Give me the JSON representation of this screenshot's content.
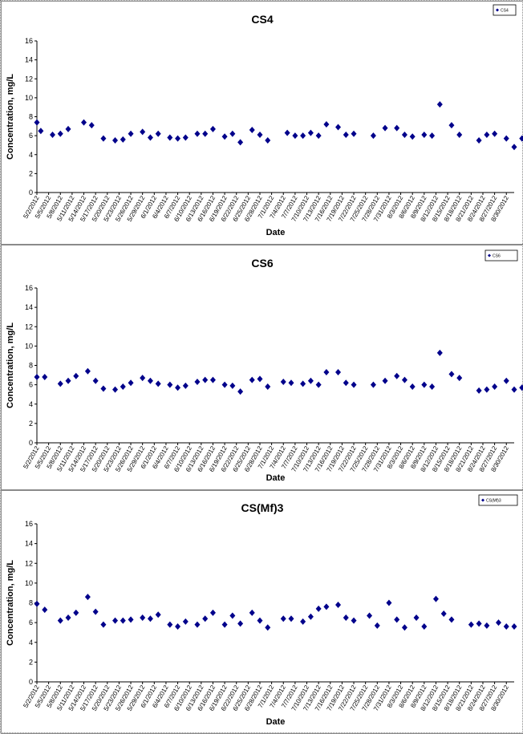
{
  "chart_data": [
    {
      "type": "scatter",
      "title": "CS4",
      "xlabel": "Date",
      "ylabel": "Concentration, mg/L",
      "ylim": [
        0,
        16
      ],
      "yticks": [
        0,
        2,
        4,
        6,
        8,
        10,
        12,
        14,
        16
      ],
      "xlim": [
        "5/2/2012",
        "9/1/2012"
      ],
      "xticks": [
        "5/2/2012",
        "5/5/2012",
        "5/8/2012",
        "5/11/2012",
        "5/14/2012",
        "5/17/2012",
        "5/20/2012",
        "5/23/2012",
        "5/26/2012",
        "5/29/2012",
        "6/1/2012",
        "6/4/2012",
        "6/7/2012",
        "6/10/2012",
        "6/13/2012",
        "6/16/2012",
        "6/19/2012",
        "6/22/2012",
        "6/25/2012",
        "6/28/2012",
        "7/1/2012",
        "7/4/2012",
        "7/7/2012",
        "7/10/2012",
        "7/13/2012",
        "7/16/2012",
        "7/19/2012",
        "7/22/2012",
        "7/25/2012",
        "7/28/2012",
        "7/31/2012",
        "8/3/2012",
        "8/6/2012",
        "8/9/2012",
        "8/12/2012",
        "8/15/2012",
        "8/18/2012",
        "8/21/2012",
        "8/24/2012",
        "8/27/2012",
        "8/30/2012"
      ],
      "legend": {
        "placement": "top-right",
        "entries": [
          "CS4"
        ]
      },
      "series": [
        {
          "name": "CS4",
          "marker": "diamond",
          "color": "#00008b",
          "x": [
            "5/2/2012",
            "5/3/2012",
            "5/6/2012",
            "5/8/2012",
            "5/10/2012",
            "5/14/2012",
            "5/16/2012",
            "5/19/2012",
            "5/22/2012",
            "5/24/2012",
            "5/26/2012",
            "5/29/2012",
            "5/31/2012",
            "6/2/2012",
            "6/5/2012",
            "6/7/2012",
            "6/9/2012",
            "6/12/2012",
            "6/14/2012",
            "6/16/2012",
            "6/19/2012",
            "6/21/2012",
            "6/23/2012",
            "6/26/2012",
            "6/28/2012",
            "6/30/2012",
            "7/5/2012",
            "7/7/2012",
            "7/9/2012",
            "7/11/2012",
            "7/13/2012",
            "7/15/2012",
            "7/18/2012",
            "7/20/2012",
            "7/22/2012",
            "7/27/2012",
            "7/30/2012",
            "8/2/2012",
            "8/4/2012",
            "8/6/2012",
            "8/9/2012",
            "8/11/2012",
            "8/13/2012",
            "8/16/2012",
            "8/18/2012",
            "8/23/2012",
            "8/25/2012",
            "8/27/2012",
            "8/30/2012",
            "9/1/2012",
            "9/3/2012"
          ],
          "y": [
            7.4,
            6.5,
            6.1,
            6.2,
            6.7,
            7.4,
            7.1,
            5.7,
            5.5,
            5.6,
            6.2,
            6.4,
            5.8,
            6.2,
            5.8,
            5.7,
            5.8,
            6.2,
            6.2,
            6.7,
            5.9,
            6.2,
            5.3,
            6.6,
            6.1,
            5.5,
            6.3,
            6.0,
            6.0,
            6.3,
            6.0,
            7.2,
            6.9,
            6.1,
            6.2,
            6.0,
            6.8,
            6.8,
            6.1,
            5.9,
            6.1,
            6.0,
            9.3,
            7.1,
            6.1,
            5.5,
            6.1,
            6.2,
            5.7,
            4.8,
            5.7
          ]
        }
      ]
    },
    {
      "type": "scatter",
      "title": "CS6",
      "xlabel": "Date",
      "ylabel": "Concentration, mg/L",
      "ylim": [
        0,
        16
      ],
      "yticks": [
        0,
        2,
        4,
        6,
        8,
        10,
        12,
        14,
        16
      ],
      "xlim": [
        "5/2/2012",
        "9/1/2012"
      ],
      "xticks": [
        "5/2/2012",
        "5/5/2012",
        "5/8/2012",
        "5/11/2012",
        "5/14/2012",
        "5/17/2012",
        "5/20/2012",
        "5/23/2012",
        "5/26/2012",
        "5/29/2012",
        "6/1/2012",
        "6/4/2012",
        "6/7/2012",
        "6/10/2012",
        "6/13/2012",
        "6/16/2012",
        "6/19/2012",
        "6/22/2012",
        "6/25/2012",
        "6/28/2012",
        "7/1/2012",
        "7/4/2012",
        "7/7/2012",
        "7/10/2012",
        "7/13/2012",
        "7/16/2012",
        "7/19/2012",
        "7/22/2012",
        "7/25/2012",
        "7/28/2012",
        "7/31/2012",
        "8/3/2012",
        "8/6/2012",
        "8/9/2012",
        "8/12/2012",
        "8/15/2012",
        "8/18/2012",
        "8/21/2012",
        "8/24/2012",
        "8/27/2012",
        "8/30/2012"
      ],
      "legend": {
        "placement": "top-right",
        "entries": [
          "CS6"
        ]
      },
      "series": [
        {
          "name": "CS6",
          "marker": "diamond",
          "color": "#00008b",
          "x": [
            "5/2/2012",
            "5/4/2012",
            "5/8/2012",
            "5/10/2012",
            "5/12/2012",
            "5/15/2012",
            "5/17/2012",
            "5/19/2012",
            "5/22/2012",
            "5/24/2012",
            "5/26/2012",
            "5/29/2012",
            "5/31/2012",
            "6/2/2012",
            "6/5/2012",
            "6/7/2012",
            "6/9/2012",
            "6/12/2012",
            "6/14/2012",
            "6/16/2012",
            "6/19/2012",
            "6/21/2012",
            "6/23/2012",
            "6/26/2012",
            "6/28/2012",
            "6/30/2012",
            "7/4/2012",
            "7/6/2012",
            "7/9/2012",
            "7/11/2012",
            "7/13/2012",
            "7/15/2012",
            "7/18/2012",
            "7/20/2012",
            "7/22/2012",
            "7/27/2012",
            "7/30/2012",
            "8/2/2012",
            "8/4/2012",
            "8/6/2012",
            "8/9/2012",
            "8/11/2012",
            "8/13/2012",
            "8/16/2012",
            "8/18/2012",
            "8/23/2012",
            "8/25/2012",
            "8/27/2012",
            "8/30/2012",
            "9/1/2012",
            "9/3/2012"
          ],
          "y": [
            6.8,
            6.8,
            6.1,
            6.4,
            6.9,
            7.4,
            6.4,
            5.6,
            5.5,
            5.8,
            6.2,
            6.7,
            6.4,
            6.1,
            6.0,
            5.7,
            5.9,
            6.3,
            6.5,
            6.5,
            6.0,
            5.9,
            5.3,
            6.5,
            6.6,
            5.8,
            6.3,
            6.2,
            6.1,
            6.4,
            6.0,
            7.3,
            7.3,
            6.2,
            6.0,
            6.0,
            6.4,
            6.9,
            6.5,
            5.8,
            6.0,
            5.8,
            9.3,
            7.1,
            6.7,
            5.4,
            5.5,
            5.8,
            6.4,
            5.5,
            5.7
          ]
        }
      ]
    },
    {
      "type": "scatter",
      "title": "CS(Mf)3",
      "xlabel": "Date",
      "ylabel": "Concentration, mg/L",
      "ylim": [
        0,
        16
      ],
      "yticks": [
        0,
        2,
        4,
        6,
        8,
        10,
        12,
        14,
        16
      ],
      "xlim": [
        "5/2/2012",
        "9/1/2012"
      ],
      "xticks": [
        "5/2/2012",
        "5/5/2012",
        "5/8/2012",
        "5/11/2012",
        "5/14/2012",
        "5/17/2012",
        "5/20/2012",
        "5/23/2012",
        "5/26/2012",
        "5/29/2012",
        "6/1/2012",
        "6/4/2012",
        "6/7/2012",
        "6/10/2012",
        "6/13/2012",
        "6/16/2012",
        "6/19/2012",
        "6/22/2012",
        "6/25/2012",
        "6/28/2012",
        "7/1/2012",
        "7/4/2012",
        "7/7/2012",
        "7/10/2012",
        "7/13/2012",
        "7/16/2012",
        "7/19/2012",
        "7/22/2012",
        "7/25/2012",
        "7/28/2012",
        "7/31/2012",
        "8/3/2012",
        "8/6/2012",
        "8/9/2012",
        "8/12/2012",
        "8/15/2012",
        "8/18/2012",
        "8/21/2012",
        "8/24/2012",
        "8/27/2012",
        "8/30/2012"
      ],
      "legend": {
        "placement": "top-right",
        "entries": [
          "CS(Mf)3"
        ]
      },
      "series": [
        {
          "name": "CS(Mf)3",
          "marker": "diamond",
          "color": "#00008b",
          "x": [
            "5/2/2012",
            "5/4/2012",
            "5/8/2012",
            "5/10/2012",
            "5/12/2012",
            "5/15/2012",
            "5/17/2012",
            "5/19/2012",
            "5/22/2012",
            "5/24/2012",
            "5/26/2012",
            "5/29/2012",
            "5/31/2012",
            "6/2/2012",
            "6/5/2012",
            "6/7/2012",
            "6/9/2012",
            "6/12/2012",
            "6/14/2012",
            "6/16/2012",
            "6/19/2012",
            "6/21/2012",
            "6/23/2012",
            "6/26/2012",
            "6/28/2012",
            "6/30/2012",
            "7/4/2012",
            "7/6/2012",
            "7/9/2012",
            "7/11/2012",
            "7/13/2012",
            "7/15/2012",
            "7/18/2012",
            "7/20/2012",
            "7/22/2012",
            "7/26/2012",
            "7/28/2012",
            "7/31/2012",
            "8/2/2012",
            "8/4/2012",
            "8/7/2012",
            "8/9/2012",
            "8/12/2012",
            "8/14/2012",
            "8/16/2012",
            "8/21/2012",
            "8/23/2012",
            "8/25/2012",
            "8/28/2012",
            "8/30/2012",
            "9/1/2012"
          ],
          "y": [
            7.9,
            7.3,
            6.2,
            6.5,
            7.0,
            8.6,
            7.1,
            5.8,
            6.2,
            6.2,
            6.3,
            6.5,
            6.4,
            6.8,
            5.8,
            5.6,
            6.1,
            5.8,
            6.4,
            7.0,
            5.8,
            6.7,
            5.9,
            7.0,
            6.2,
            5.5,
            6.4,
            6.4,
            6.1,
            6.6,
            7.4,
            7.6,
            7.8,
            6.5,
            6.2,
            6.7,
            5.7,
            8.0,
            6.3,
            5.5,
            6.5,
            5.6,
            8.4,
            6.9,
            6.3,
            5.8,
            5.9,
            5.7,
            6.0,
            5.6,
            5.6
          ]
        }
      ]
    }
  ]
}
